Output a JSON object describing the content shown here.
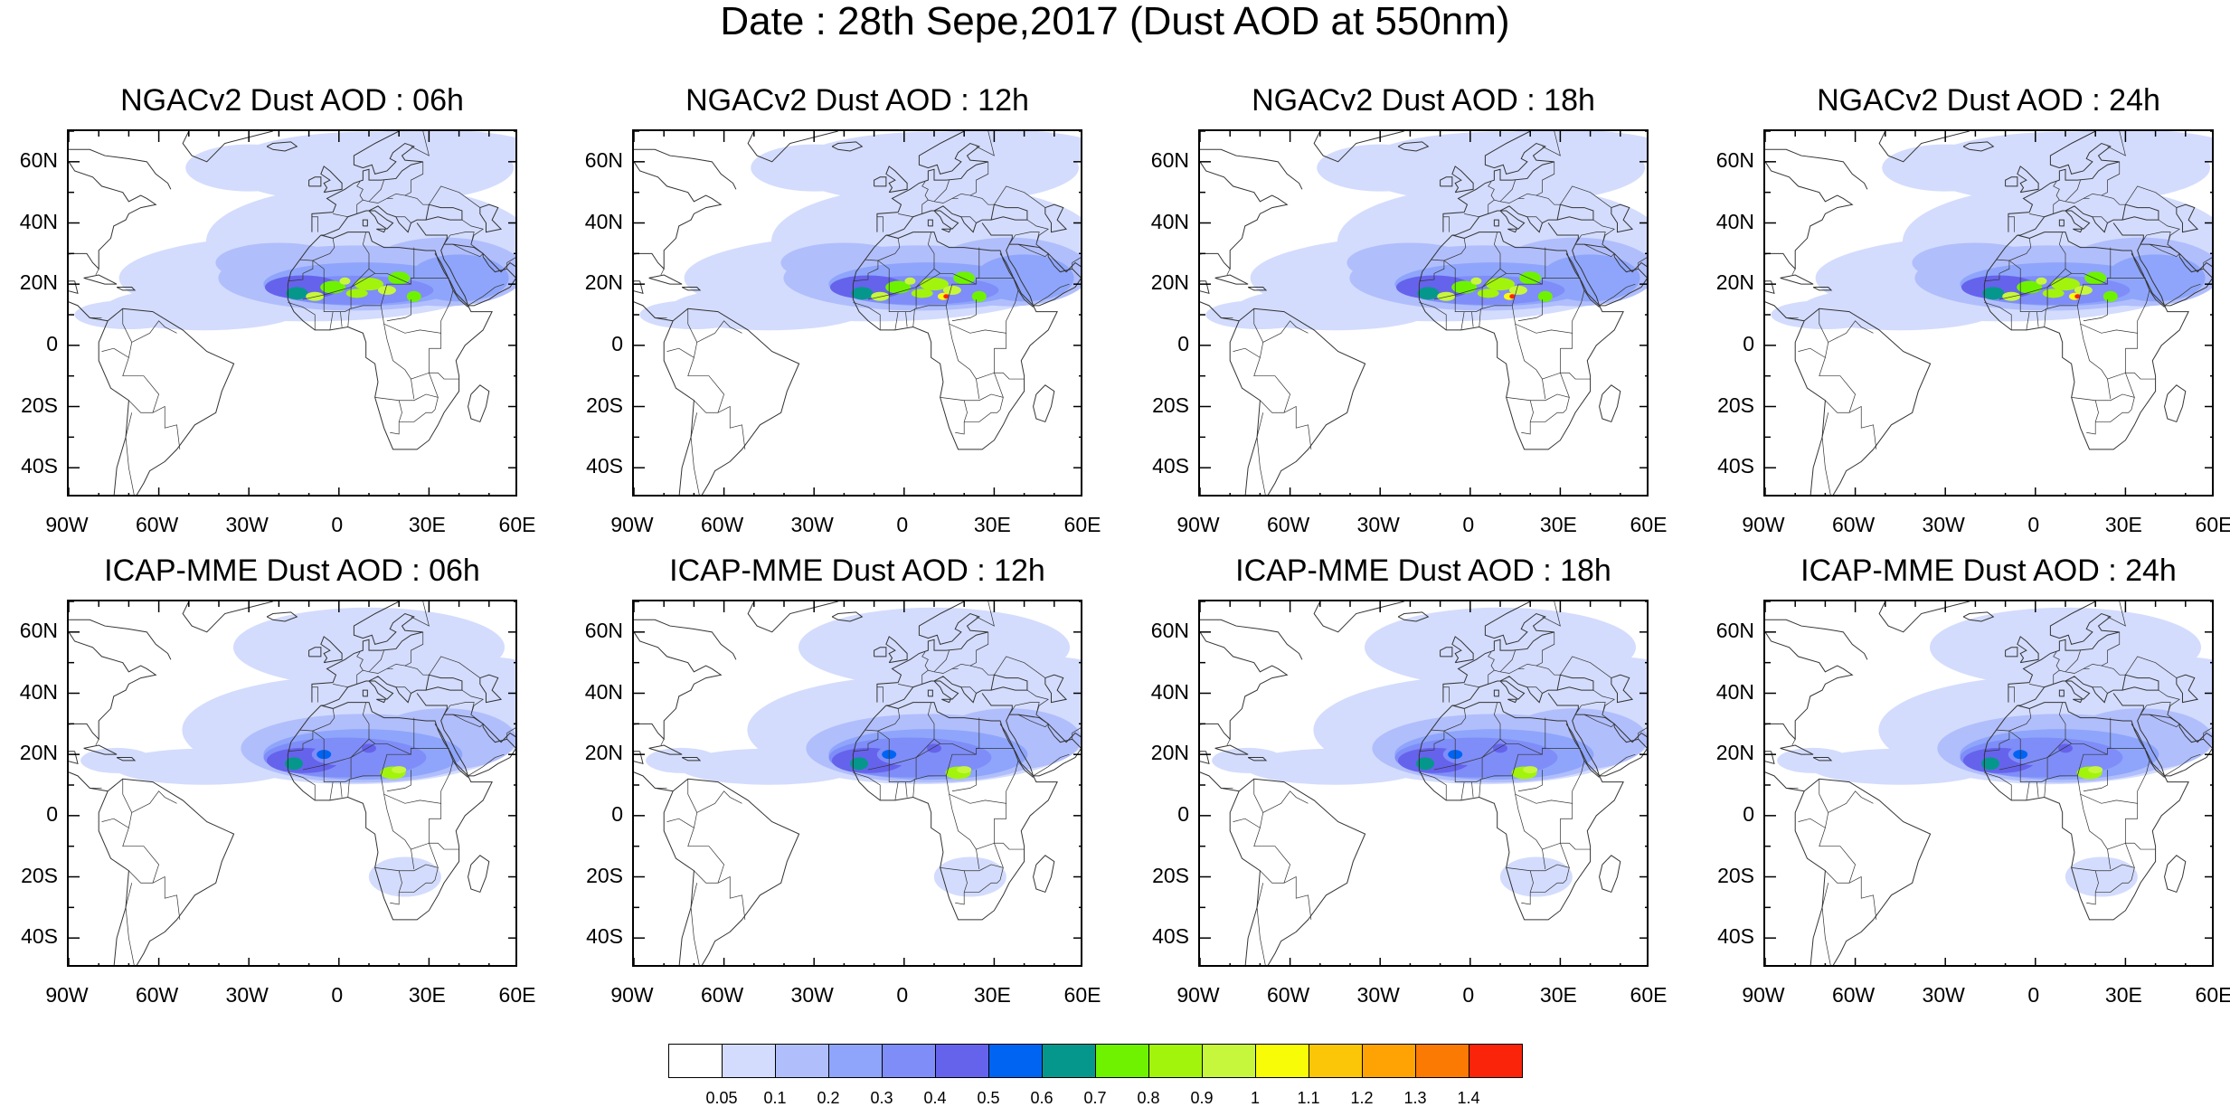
{
  "title": "Date : 28th Sepe,2017 (Dust AOD at 550nm)",
  "panels": [
    {
      "title": "NGACv2 Dust AOD : 06h",
      "model": "NGACv2",
      "hour": "06h",
      "layout": "A",
      "hot": 0
    },
    {
      "title": "NGACv2 Dust AOD : 12h",
      "model": "NGACv2",
      "hour": "12h",
      "layout": "A",
      "hot": 1
    },
    {
      "title": "NGACv2 Dust AOD : 18h",
      "model": "NGACv2",
      "hour": "18h",
      "layout": "A",
      "hot": 1
    },
    {
      "title": "NGACv2 Dust AOD : 24h",
      "model": "NGACv2",
      "hour": "24h",
      "layout": "A",
      "hot": 1
    },
    {
      "title": "ICAP-MME Dust AOD : 06h",
      "model": "ICAP-MME",
      "hour": "06h",
      "layout": "B",
      "hot": 0
    },
    {
      "title": "ICAP-MME Dust AOD : 12h",
      "model": "ICAP-MME",
      "hour": "12h",
      "layout": "B",
      "hot": 0
    },
    {
      "title": "ICAP-MME Dust AOD : 18h",
      "model": "ICAP-MME",
      "hour": "18h",
      "layout": "B",
      "hot": 0
    },
    {
      "title": "ICAP-MME Dust AOD : 24h",
      "model": "ICAP-MME",
      "hour": "24h",
      "layout": "B",
      "hot": 0
    }
  ],
  "map_extent": {
    "lon": [
      -90,
      60
    ],
    "lat": [
      -50,
      70
    ]
  },
  "lat_ticks": [
    {
      "value": 60,
      "label": "60N"
    },
    {
      "value": 40,
      "label": "40N"
    },
    {
      "value": 20,
      "label": "20N"
    },
    {
      "value": 0,
      "label": "0"
    },
    {
      "value": -20,
      "label": "20S"
    },
    {
      "value": -40,
      "label": "40S"
    }
  ],
  "lon_ticks": [
    {
      "value": -90,
      "label": "90W"
    },
    {
      "value": -60,
      "label": "60W"
    },
    {
      "value": -30,
      "label": "30W"
    },
    {
      "value": 0,
      "label": "0"
    },
    {
      "value": 30,
      "label": "30E"
    },
    {
      "value": 60,
      "label": "60E"
    }
  ],
  "colorbar": {
    "colors": [
      "#ffffff",
      "#d3dcfd",
      "#b1befc",
      "#8ea5fb",
      "#7f8df8",
      "#6563ec",
      "#0064f2",
      "#05978c",
      "#6ef200",
      "#a2f40c",
      "#c6f73c",
      "#f9fc07",
      "#fbc607",
      "#fea303",
      "#fb7a03",
      "#fa240b"
    ],
    "labels": [
      "0.05",
      "0.1",
      "0.2",
      "0.3",
      "0.4",
      "0.5",
      "0.6",
      "0.7",
      "0.8",
      "0.9",
      "1",
      "1.1",
      "1.2",
      "1.3",
      "1.4"
    ]
  }
}
